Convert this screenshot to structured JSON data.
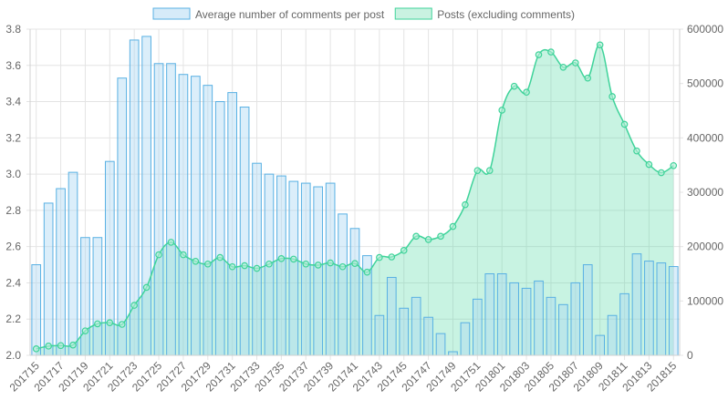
{
  "chart_data": {
    "type": "bar",
    "legend": {
      "placement": "top",
      "items": [
        {
          "label": "Average number of comments per post",
          "fill": "#d6ebf9",
          "stroke": "#58b0e3"
        },
        {
          "label": "Posts (excluding comments)",
          "fill": "#c9f2e1",
          "stroke": "#3fd39a"
        }
      ]
    },
    "x": [
      "201715",
      "201716",
      "201717",
      "201718",
      "201719",
      "201720",
      "201721",
      "201722",
      "201723",
      "201724",
      "201725",
      "201726",
      "201727",
      "201728",
      "201729",
      "201730",
      "201731",
      "201732",
      "201733",
      "201734",
      "201735",
      "201736",
      "201737",
      "201738",
      "201739",
      "201740",
      "201741",
      "201742",
      "201743",
      "201744",
      "201745",
      "201746",
      "201747",
      "201748",
      "201749",
      "201750",
      "201751",
      "201752",
      "201801",
      "201802",
      "201803",
      "201804",
      "201805",
      "201806",
      "201807",
      "201808",
      "201809",
      "201810",
      "201811",
      "201812",
      "201813",
      "201814",
      "201815"
    ],
    "x_tick_labels": [
      "201715",
      "201717",
      "201719",
      "201721",
      "201723",
      "201725",
      "201727",
      "201729",
      "201731",
      "201733",
      "201735",
      "201737",
      "201739",
      "201741",
      "201743",
      "201745",
      "201747",
      "201749",
      "201751",
      "201801",
      "201803",
      "201805",
      "201807",
      "201809",
      "201811",
      "201813",
      "201815"
    ],
    "y_left": {
      "min": 2.0,
      "max": 3.8,
      "ticks": [
        "2.0",
        "2.2",
        "2.4",
        "2.6",
        "2.8",
        "3.0",
        "3.2",
        "3.4",
        "3.6",
        "3.8"
      ]
    },
    "y_right": {
      "min": 0,
      "max": 600000,
      "ticks": [
        "0",
        "100000",
        "200000",
        "300000",
        "400000",
        "500000",
        "600000"
      ]
    },
    "grid": true,
    "series": [
      {
        "name": "Average number of comments per post",
        "type": "bar",
        "axis": "left",
        "color": "#58b0e3",
        "values": [
          2.5,
          2.84,
          2.92,
          3.01,
          2.65,
          2.65,
          3.07,
          3.53,
          3.74,
          3.76,
          3.61,
          3.61,
          3.55,
          3.54,
          3.49,
          3.4,
          3.45,
          3.37,
          3.06,
          3.0,
          2.99,
          2.96,
          2.95,
          2.93,
          2.95,
          2.78,
          2.7,
          2.55,
          2.22,
          2.43,
          2.26,
          2.32,
          2.21,
          2.12,
          2.02,
          2.18,
          2.31,
          2.45,
          2.45,
          2.4,
          2.37,
          2.41,
          2.32,
          2.28,
          2.4,
          2.5,
          2.11,
          2.22,
          2.34,
          2.56,
          2.52,
          2.51,
          2.49
        ]
      },
      {
        "name": "Posts (excluding comments)",
        "type": "area",
        "axis": "right",
        "color": "#3fd39a",
        "values": [
          12000,
          17000,
          18000,
          19000,
          45000,
          58000,
          60000,
          57000,
          92000,
          125000,
          185000,
          208000,
          185000,
          173000,
          168000,
          180000,
          163000,
          165000,
          160000,
          168000,
          178000,
          177000,
          168000,
          166000,
          170000,
          163000,
          169000,
          153000,
          180000,
          181000,
          193000,
          219000,
          213000,
          219000,
          237000,
          277000,
          340000,
          340000,
          451000,
          495000,
          484000,
          553000,
          558000,
          530000,
          538000,
          510000,
          571000,
          476000,
          425000,
          376000,
          351000,
          336000,
          349000
        ]
      }
    ]
  }
}
